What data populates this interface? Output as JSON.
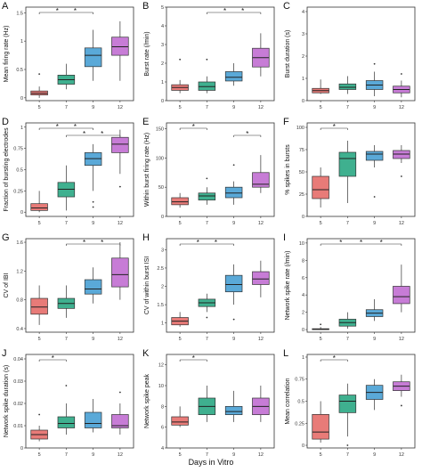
{
  "figure": {
    "xlabel": "Days in Vitro",
    "group_colors": [
      "#e87b78",
      "#3fb08f",
      "#5aa9d8",
      "#c77cd6"
    ]
  },
  "chart_data": [
    {
      "type": "box",
      "panel": "A",
      "ylabel": "Mean firing rate (Hz)",
      "categories": [
        "5",
        "7",
        "9",
        "12"
      ],
      "y_ticks": [
        0,
        0.5,
        1,
        1.5
      ],
      "ylim": [
        -0.05,
        1.6
      ],
      "boxes": [
        {
          "min": 0.0,
          "q1": 0.05,
          "median": 0.08,
          "q3": 0.12,
          "max": 0.2,
          "outliers": [
            0.42
          ]
        },
        {
          "min": 0.15,
          "q1": 0.24,
          "median": 0.32,
          "q3": 0.4,
          "max": 0.6,
          "outliers": []
        },
        {
          "min": 0.3,
          "q1": 0.55,
          "median": 0.75,
          "q3": 0.88,
          "max": 1.2,
          "outliers": []
        },
        {
          "min": 0.3,
          "q1": 0.75,
          "median": 0.9,
          "q3": 1.07,
          "max": 1.35,
          "outliers": []
        }
      ],
      "significance": [
        {
          "from": 0,
          "to": 2,
          "stars": [
            "*",
            "*"
          ]
        }
      ]
    },
    {
      "type": "box",
      "panel": "B",
      "ylabel": "Burst rate (/min)",
      "categories": [
        "5",
        "7",
        "9",
        "12"
      ],
      "y_ticks": [
        0,
        1,
        2,
        3,
        4,
        5
      ],
      "ylim": [
        0,
        5
      ],
      "boxes": [
        {
          "min": 0.4,
          "q1": 0.55,
          "median": 0.7,
          "q3": 0.85,
          "max": 1.1,
          "outliers": [
            2.2
          ]
        },
        {
          "min": 0.4,
          "q1": 0.55,
          "median": 0.75,
          "q3": 1.0,
          "max": 1.3,
          "outliers": [
            2.2
          ]
        },
        {
          "min": 0.8,
          "q1": 1.05,
          "median": 1.25,
          "q3": 1.55,
          "max": 2.0,
          "outliers": []
        },
        {
          "min": 1.3,
          "q1": 1.8,
          "median": 2.3,
          "q3": 2.8,
          "max": 3.6,
          "outliers": []
        }
      ],
      "significance": [
        {
          "from": 1,
          "to": 3,
          "stars": [
            "*",
            "*"
          ]
        }
      ]
    },
    {
      "type": "box",
      "panel": "C",
      "ylabel": "Burst duration (s)",
      "categories": [
        "5",
        "7",
        "9",
        "12"
      ],
      "y_ticks": [
        0,
        1,
        2,
        3,
        4
      ],
      "ylim": [
        0,
        4.2
      ],
      "boxes": [
        {
          "min": 0.3,
          "q1": 0.35,
          "median": 0.45,
          "q3": 0.55,
          "max": 0.95,
          "outliers": []
        },
        {
          "min": 0.3,
          "q1": 0.5,
          "median": 0.6,
          "q3": 0.75,
          "max": 1.1,
          "outliers": []
        },
        {
          "min": 0.2,
          "q1": 0.5,
          "median": 0.7,
          "q3": 0.9,
          "max": 1.3,
          "outliers": [
            1.65
          ]
        },
        {
          "min": 0.15,
          "q1": 0.35,
          "median": 0.5,
          "q3": 0.65,
          "max": 0.9,
          "outliers": [
            1.2
          ]
        }
      ],
      "significance": []
    },
    {
      "type": "box",
      "panel": "D",
      "ylabel": "Fraction of bursting electrodes",
      "categories": [
        "5",
        "7",
        "9",
        "12"
      ],
      "y_ticks": [
        0,
        0.25,
        0.5,
        0.75,
        1.0
      ],
      "ylim": [
        -0.05,
        1.05
      ],
      "boxes": [
        {
          "min": 0.0,
          "q1": 0.02,
          "median": 0.05,
          "q3": 0.1,
          "max": 0.25,
          "outliers": []
        },
        {
          "min": 0.02,
          "q1": 0.18,
          "median": 0.27,
          "q3": 0.35,
          "max": 0.55,
          "outliers": []
        },
        {
          "min": 0.25,
          "q1": 0.55,
          "median": 0.63,
          "q3": 0.7,
          "max": 0.8,
          "outliers": [
            0.12,
            0.06
          ]
        },
        {
          "min": 0.45,
          "q1": 0.7,
          "median": 0.8,
          "q3": 0.88,
          "max": 0.97,
          "outliers": [
            0.3
          ]
        }
      ],
      "significance": [
        {
          "from": 0,
          "to": 2,
          "stars": [
            "*",
            "*"
          ]
        },
        {
          "from": 1,
          "to": 3,
          "stars": [
            "*",
            "*"
          ]
        }
      ]
    },
    {
      "type": "box",
      "panel": "E",
      "ylabel": "Within burst firing rate (Hz)",
      "categories": [
        "5",
        "7",
        "9",
        "12"
      ],
      "y_ticks": [
        0,
        50,
        100,
        150
      ],
      "ylim": [
        0,
        160
      ],
      "boxes": [
        {
          "min": 15,
          "q1": 20,
          "median": 25,
          "q3": 32,
          "max": 40,
          "outliers": []
        },
        {
          "min": 20,
          "q1": 28,
          "median": 35,
          "q3": 40,
          "max": 50,
          "outliers": [
            65
          ]
        },
        {
          "min": 20,
          "q1": 32,
          "median": 40,
          "q3": 50,
          "max": 60,
          "outliers": [
            88
          ]
        },
        {
          "min": 40,
          "q1": 50,
          "median": 55,
          "q3": 75,
          "max": 105,
          "outliers": []
        }
      ],
      "significance": [
        {
          "from": 0,
          "to": 1,
          "stars": [
            "*"
          ]
        },
        {
          "from": 2,
          "to": 3,
          "stars": [
            "*"
          ]
        }
      ]
    },
    {
      "type": "box",
      "panel": "F",
      "ylabel": "% spikes in bursts",
      "categories": [
        "5",
        "7",
        "9",
        "12"
      ],
      "y_ticks": [
        0,
        25,
        50,
        75,
        100
      ],
      "ylim": [
        0,
        105
      ],
      "boxes": [
        {
          "min": 10,
          "q1": 20,
          "median": 30,
          "q3": 45,
          "max": 55,
          "outliers": []
        },
        {
          "min": 15,
          "q1": 45,
          "median": 65,
          "q3": 72,
          "max": 85,
          "outliers": []
        },
        {
          "min": 55,
          "q1": 63,
          "median": 70,
          "q3": 73,
          "max": 80,
          "outliers": [
            22
          ]
        },
        {
          "min": 60,
          "q1": 65,
          "median": 70,
          "q3": 74,
          "max": 80,
          "outliers": [
            45
          ]
        }
      ],
      "significance": [
        {
          "from": 0,
          "to": 1,
          "stars": [
            "*"
          ]
        }
      ]
    },
    {
      "type": "box",
      "panel": "G",
      "ylabel": "CV of IBI",
      "categories": [
        "5",
        "7",
        "9",
        "12"
      ],
      "y_ticks": [
        0.4,
        0.8,
        1.2,
        1.6
      ],
      "ylim": [
        0.35,
        1.65
      ],
      "boxes": [
        {
          "min": 0.45,
          "q1": 0.6,
          "median": 0.7,
          "q3": 0.82,
          "max": 1.0,
          "outliers": []
        },
        {
          "min": 0.55,
          "q1": 0.68,
          "median": 0.75,
          "q3": 0.82,
          "max": 1.0,
          "outliers": []
        },
        {
          "min": 0.75,
          "q1": 0.88,
          "median": 0.95,
          "q3": 1.08,
          "max": 1.25,
          "outliers": []
        },
        {
          "min": 0.8,
          "q1": 0.98,
          "median": 1.15,
          "q3": 1.38,
          "max": 1.6,
          "outliers": []
        }
      ],
      "significance": [
        {
          "from": 1,
          "to": 3,
          "stars": [
            "*",
            "*"
          ]
        }
      ]
    },
    {
      "type": "box",
      "panel": "H",
      "ylabel": "CV of within burst ISI",
      "categories": [
        "5",
        "7",
        "9",
        "12"
      ],
      "y_ticks": [
        1.0,
        1.5,
        2.0,
        2.5,
        3.0
      ],
      "ylim": [
        0.75,
        3.3
      ],
      "boxes": [
        {
          "min": 0.9,
          "q1": 0.95,
          "median": 1.05,
          "q3": 1.15,
          "max": 1.3,
          "outliers": []
        },
        {
          "min": 1.3,
          "q1": 1.45,
          "median": 1.55,
          "q3": 1.65,
          "max": 1.8,
          "outliers": [
            1.15
          ]
        },
        {
          "min": 1.5,
          "q1": 1.85,
          "median": 2.05,
          "q3": 2.3,
          "max": 2.6,
          "outliers": [
            1.1
          ]
        },
        {
          "min": 1.7,
          "q1": 2.05,
          "median": 2.2,
          "q3": 2.4,
          "max": 2.7,
          "outliers": []
        }
      ],
      "significance": [
        {
          "from": 0,
          "to": 2,
          "stars": [
            "*",
            "*"
          ]
        }
      ]
    },
    {
      "type": "box",
      "panel": "I",
      "ylabel": "Network spike rate (/min)",
      "categories": [
        "5",
        "7",
        "9",
        "12"
      ],
      "y_ticks": [
        0,
        2,
        4,
        6,
        8,
        10
      ],
      "ylim": [
        -0.3,
        10.5
      ],
      "boxes": [
        {
          "min": 0,
          "q1": 0.0,
          "median": 0.05,
          "q3": 0.1,
          "max": 0.3,
          "outliers": [
            0.6
          ]
        },
        {
          "min": 0.1,
          "q1": 0.4,
          "median": 0.8,
          "q3": 1.2,
          "max": 2.0,
          "outliers": []
        },
        {
          "min": 1.0,
          "q1": 1.5,
          "median": 1.9,
          "q3": 2.3,
          "max": 3.5,
          "outliers": []
        },
        {
          "min": 2.0,
          "q1": 3.0,
          "median": 3.8,
          "q3": 5.0,
          "max": 7.5,
          "outliers": []
        }
      ],
      "significance": [
        {
          "from": 0,
          "to": 3,
          "stars": [
            "*",
            "*",
            "*"
          ]
        }
      ]
    },
    {
      "type": "box",
      "panel": "J",
      "ylabel": "Network spike duration (s)",
      "categories": [
        "5",
        "7",
        "9",
        "12"
      ],
      "y_ticks": [
        0,
        0.01,
        0.02,
        0.03,
        0.04
      ],
      "ylim": [
        0,
        0.042
      ],
      "boxes": [
        {
          "min": 0.003,
          "q1": 0.004,
          "median": 0.006,
          "q3": 0.008,
          "max": 0.01,
          "outliers": [
            0.015
          ]
        },
        {
          "min": 0.006,
          "q1": 0.009,
          "median": 0.011,
          "q3": 0.014,
          "max": 0.02,
          "outliers": [
            0.028
          ]
        },
        {
          "min": 0.007,
          "q1": 0.009,
          "median": 0.011,
          "q3": 0.016,
          "max": 0.022,
          "outliers": []
        },
        {
          "min": 0.006,
          "q1": 0.009,
          "median": 0.01,
          "q3": 0.015,
          "max": 0.02,
          "outliers": [
            0.025
          ]
        }
      ],
      "significance": [
        {
          "from": 0,
          "to": 1,
          "stars": [
            "*"
          ]
        }
      ]
    },
    {
      "type": "box",
      "panel": "K",
      "ylabel": "Network spike peak",
      "categories": [
        "5",
        "7",
        "9",
        "12"
      ],
      "y_ticks": [
        4,
        6,
        8,
        10,
        12
      ],
      "ylim": [
        4,
        13
      ],
      "boxes": [
        {
          "min": 6.0,
          "q1": 6.2,
          "median": 6.5,
          "q3": 7.0,
          "max": 8.0,
          "outliers": []
        },
        {
          "min": 6.5,
          "q1": 7.2,
          "median": 8.0,
          "q3": 8.8,
          "max": 10.0,
          "outliers": []
        },
        {
          "min": 6.5,
          "q1": 7.2,
          "median": 7.5,
          "q3": 8.0,
          "max": 9.5,
          "outliers": []
        },
        {
          "min": 6.5,
          "q1": 7.2,
          "median": 8.0,
          "q3": 8.8,
          "max": 10.0,
          "outliers": []
        }
      ],
      "significance": [
        {
          "from": 0,
          "to": 1,
          "stars": [
            "*"
          ]
        }
      ]
    },
    {
      "type": "box",
      "panel": "L",
      "ylabel": "Mean correlation",
      "categories": [
        "5",
        "7",
        "9",
        "12"
      ],
      "y_ticks": [
        0,
        0.25,
        0.5,
        0.75,
        1.0
      ],
      "ylim": [
        -0.03,
        1.03
      ],
      "boxes": [
        {
          "min": 0.03,
          "q1": 0.07,
          "median": 0.15,
          "q3": 0.35,
          "max": 0.5,
          "outliers": []
        },
        {
          "min": 0.1,
          "q1": 0.37,
          "median": 0.5,
          "q3": 0.57,
          "max": 0.7,
          "outliers": [
            0.0
          ]
        },
        {
          "min": 0.4,
          "q1": 0.52,
          "median": 0.6,
          "q3": 0.68,
          "max": 0.75,
          "outliers": []
        },
        {
          "min": 0.55,
          "q1": 0.62,
          "median": 0.67,
          "q3": 0.72,
          "max": 0.8,
          "outliers": [
            0.45
          ]
        }
      ],
      "significance": [
        {
          "from": 0,
          "to": 1,
          "stars": [
            "*"
          ]
        }
      ]
    }
  ]
}
